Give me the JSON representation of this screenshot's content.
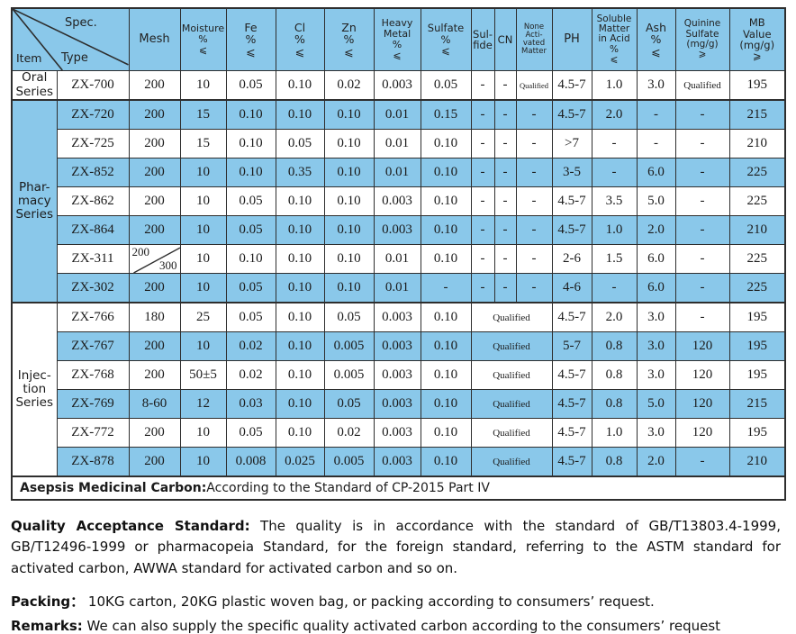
{
  "colors": {
    "cell_blue": "#8AC8EA",
    "border": "#2e2e2e",
    "text": "#1b1b1b"
  },
  "table": {
    "corner": {
      "spec": "Spec.",
      "type": "Type",
      "item": "Item"
    },
    "columns": [
      {
        "key": "mesh",
        "lines": [
          "Mesh"
        ]
      },
      {
        "key": "moisture",
        "lines": [
          "Moisture",
          "%",
          "⩽"
        ]
      },
      {
        "key": "fe",
        "lines": [
          "Fe",
          "%",
          "⩽"
        ]
      },
      {
        "key": "cl",
        "lines": [
          "Cl",
          "%",
          "⩽"
        ]
      },
      {
        "key": "zn",
        "lines": [
          "Zn",
          "%",
          "⩽"
        ]
      },
      {
        "key": "heavy",
        "lines": [
          "Heavy",
          "Metal",
          "%",
          "⩽"
        ]
      },
      {
        "key": "sulfate",
        "lines": [
          "Sulfate",
          "%",
          "⩽"
        ]
      },
      {
        "key": "sulfide",
        "lines": [
          "Sul-",
          "fide"
        ]
      },
      {
        "key": "cn",
        "lines": [
          "CN"
        ]
      },
      {
        "key": "none_activated",
        "lines": [
          "None",
          "Acti-",
          "vated",
          "Matter"
        ]
      },
      {
        "key": "ph",
        "lines": [
          "PH"
        ]
      },
      {
        "key": "soluble",
        "lines": [
          "Soluble",
          "Matter",
          "in Acid",
          "%",
          "⩽"
        ]
      },
      {
        "key": "ash",
        "lines": [
          "Ash",
          "%",
          "⩽"
        ]
      },
      {
        "key": "quinine",
        "lines": [
          "Quinine",
          "Sulfate",
          "(mg/g)",
          "⩾"
        ]
      },
      {
        "key": "mb",
        "lines": [
          "MB",
          "Value",
          "(mg/g)",
          "⩾"
        ]
      }
    ],
    "groups": [
      {
        "id": "oral",
        "label_lines": [
          "Oral",
          "Series"
        ],
        "row_count": 1
      },
      {
        "id": "pharmacy",
        "label_lines": [
          "Phar-",
          "macy",
          "Series"
        ],
        "row_count": 7
      },
      {
        "id": "injection",
        "label_lines": [
          "Injec-",
          "tion",
          "Series"
        ],
        "row_count": 6
      }
    ],
    "rows": [
      {
        "type": "ZX-700",
        "mesh": "200",
        "moisture": "10",
        "fe": "0.05",
        "cl": "0.10",
        "zn": "0.02",
        "heavy": "0.003",
        "sulfate": "0.05",
        "sulfide": "-",
        "cn": "-",
        "none_activated": "Qualified",
        "ph": "4.5-7",
        "soluble": "1.0",
        "ash": "3.0",
        "quinine": "Qualified",
        "mb": "195",
        "shaded": false
      },
      {
        "type": "ZX-720",
        "mesh": "200",
        "moisture": "15",
        "fe": "0.10",
        "cl": "0.10",
        "zn": "0.10",
        "heavy": "0.01",
        "sulfate": "0.15",
        "sulfide": "-",
        "cn": "-",
        "none_activated": "-",
        "ph": "4.5-7",
        "soluble": "2.0",
        "ash": "-",
        "quinine": "-",
        "mb": "215",
        "shaded": true
      },
      {
        "type": "ZX-725",
        "mesh": "200",
        "moisture": "15",
        "fe": "0.10",
        "cl": "0.05",
        "zn": "0.10",
        "heavy": "0.01",
        "sulfate": "0.10",
        "sulfide": "-",
        "cn": "-",
        "none_activated": "-",
        "ph": ">7",
        "soluble": "-",
        "ash": "-",
        "quinine": "-",
        "mb": "210",
        "shaded": false
      },
      {
        "type": "ZX-852",
        "mesh": "200",
        "moisture": "10",
        "fe": "0.10",
        "cl": "0.35",
        "zn": "0.10",
        "heavy": "0.01",
        "sulfate": "0.10",
        "sulfide": "-",
        "cn": "-",
        "none_activated": "-",
        "ph": "3-5",
        "soluble": "-",
        "ash": "6.0",
        "quinine": "-",
        "mb": "225",
        "shaded": true
      },
      {
        "type": "ZX-862",
        "mesh": "200",
        "moisture": "10",
        "fe": "0.05",
        "cl": "0.10",
        "zn": "0.10",
        "heavy": "0.003",
        "sulfate": "0.10",
        "sulfide": "-",
        "cn": "-",
        "none_activated": "-",
        "ph": "4.5-7",
        "soluble": "3.5",
        "ash": "5.0",
        "quinine": "-",
        "mb": "225",
        "shaded": false
      },
      {
        "type": "ZX-864",
        "mesh": "200",
        "moisture": "10",
        "fe": "0.05",
        "cl": "0.10",
        "zn": "0.10",
        "heavy": "0.003",
        "sulfate": "0.10",
        "sulfide": "-",
        "cn": "-",
        "none_activated": "-",
        "ph": "4.5-7",
        "soluble": "1.0",
        "ash": "2.0",
        "quinine": "-",
        "mb": "210",
        "shaded": true
      },
      {
        "type": "ZX-311",
        "mesh_diagonal": {
          "top": "200",
          "bottom": "300"
        },
        "moisture": "10",
        "fe": "0.10",
        "cl": "0.10",
        "zn": "0.10",
        "heavy": "0.01",
        "sulfate": "0.10",
        "sulfide": "-",
        "cn": "-",
        "none_activated": "-",
        "ph": "2-6",
        "soluble": "1.5",
        "ash": "6.0",
        "quinine": "-",
        "mb": "225",
        "shaded": false
      },
      {
        "type": "ZX-302",
        "mesh": "200",
        "moisture": "10",
        "fe": "0.05",
        "cl": "0.10",
        "zn": "0.10",
        "heavy": "0.01",
        "sulfate": "-",
        "sulfide": "-",
        "cn": "-",
        "none_activated": "-",
        "ph": "4-6",
        "soluble": "-",
        "ash": "6.0",
        "quinine": "-",
        "mb": "225",
        "shaded": true
      },
      {
        "type": "ZX-766",
        "mesh": "180",
        "moisture": "25",
        "fe": "0.05",
        "cl": "0.10",
        "zn": "0.05",
        "heavy": "0.003",
        "sulfate": "0.10",
        "qualified": "Qualified",
        "ph": "4.5-7",
        "soluble": "2.0",
        "ash": "3.0",
        "quinine": "-",
        "mb": "195",
        "shaded": false
      },
      {
        "type": "ZX-767",
        "mesh": "200",
        "moisture": "10",
        "fe": "0.02",
        "cl": "0.10",
        "zn": "0.005",
        "heavy": "0.003",
        "sulfate": "0.10",
        "qualified": "Qualified",
        "ph": "5-7",
        "soluble": "0.8",
        "ash": "3.0",
        "quinine": "120",
        "mb": "195",
        "shaded": true
      },
      {
        "type": "ZX-768",
        "mesh": "200",
        "moisture": "50±5",
        "fe": "0.02",
        "cl": "0.10",
        "zn": "0.005",
        "heavy": "0.003",
        "sulfate": "0.10",
        "qualified": "Qualified",
        "ph": "4.5-7",
        "soluble": "0.8",
        "ash": "3.0",
        "quinine": "120",
        "mb": "195",
        "shaded": false
      },
      {
        "type": "ZX-769",
        "mesh": "8-60",
        "moisture": "12",
        "fe": "0.03",
        "cl": "0.10",
        "zn": "0.05",
        "heavy": "0.003",
        "sulfate": "0.10",
        "qualified": "Qualified",
        "ph": "4.5-7",
        "soluble": "0.8",
        "ash": "5.0",
        "quinine": "120",
        "mb": "215",
        "shaded": true
      },
      {
        "type": "ZX-772",
        "mesh": "200",
        "moisture": "10",
        "fe": "0.05",
        "cl": "0.10",
        "zn": "0.02",
        "heavy": "0.003",
        "sulfate": "0.10",
        "qualified": "Qualified",
        "ph": "4.5-7",
        "soluble": "1.0",
        "ash": "3.0",
        "quinine": "120",
        "mb": "195",
        "shaded": false
      },
      {
        "type": "ZX-878",
        "mesh": "200",
        "moisture": "10",
        "fe": "0.008",
        "cl": "0.025",
        "zn": "0.005",
        "heavy": "0.003",
        "sulfate": "0.10",
        "qualified": "Qualified",
        "ph": "4.5-7",
        "soluble": "0.8",
        "ash": "2.0",
        "quinine": "-",
        "mb": "210",
        "shaded": true
      }
    ],
    "footer": {
      "bold": "Asepsis Medicinal Carbon:",
      "text": "According to the Standard of CP-2015 Part IV"
    }
  },
  "notes": {
    "quality": {
      "label": "Quality Acceptance Standard:",
      "text": " The quality is in accordance with the standard of GB/T13803.4-1999, GB/T12496-1999 or pharmacopeia Standard, for the foreign standard, referring to the ASTM standard for activated carbon, AWWA standard for activated carbon and so on."
    },
    "packing": {
      "label": "Packing：",
      "text": " 10KG carton, 20KG plastic woven bag, or packing according to consumers’ request."
    },
    "remarks": {
      "label": "Remarks:",
      "text": " We can also supply the specific quality activated carbon according to the consumers’ request"
    }
  }
}
